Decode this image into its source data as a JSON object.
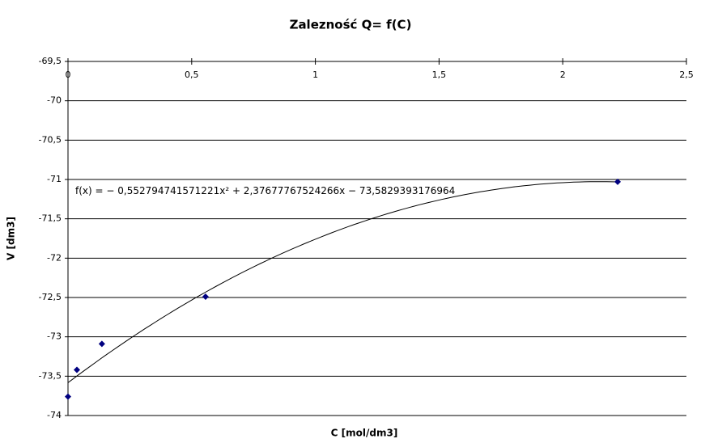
{
  "chart_data": {
    "type": "scatter",
    "title": "Zalezność Q= f(C)",
    "x_label": "C [mol/dm3]",
    "y_label": "V [dm3]",
    "x": [
      0,
      0.036,
      0.137,
      0.556,
      2.222
    ],
    "series": [
      {
        "color": "#000080",
        "values": [
          -73.76,
          -73.42,
          -73.09,
          -72.49,
          -71.03
        ]
      }
    ],
    "xlim": [
      0,
      2.5
    ],
    "xticks": [
      0,
      {
        "value": 0.5,
        "label": "0,5"
      },
      1,
      {
        "value": 1.5,
        "label": "1,5"
      },
      2,
      {
        "value": 2.5,
        "label": "2,5"
      }
    ],
    "ylim": [
      -74,
      -69.5
    ],
    "yticks": [
      -74,
      {
        "value": -73.5,
        "label": "-73,5"
      },
      -73,
      {
        "value": -72.5,
        "label": "-72,5"
      },
      -72,
      {
        "value": -71.5,
        "label": "-71,5"
      },
      -71,
      {
        "value": -70.5,
        "label": "-70,5"
      },
      -70,
      {
        "value": -69.5,
        "label": "-69,5"
      }
    ],
    "grid": true,
    "trendline": {
      "label": "f(x) = − 0,552794741571221x² + 2,37677767524266x − 73,5829393176964",
      "coefficients": [
        -0.552794741571221,
        2.37677767524266,
        -73.5829393176964
      ],
      "color": "#000000"
    }
  }
}
